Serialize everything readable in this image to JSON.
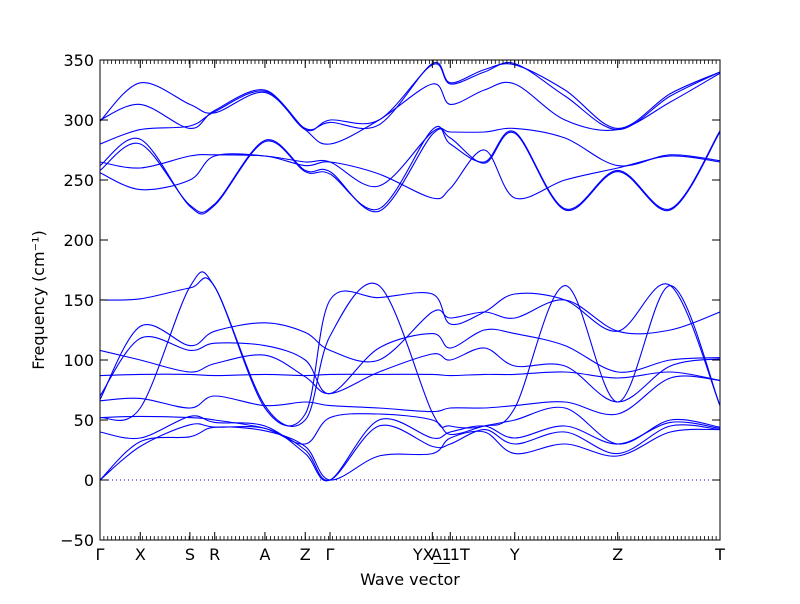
{
  "chart_data": {
    "type": "line",
    "title": "",
    "xlabel": "Wave vector",
    "ylabel": "Frequency (cm⁻¹)",
    "ylim": [
      -50,
      350
    ],
    "yticks": [
      -50,
      0,
      50,
      100,
      150,
      200,
      250,
      300,
      350
    ],
    "xlim": [
      0,
      1
    ],
    "grid": false,
    "line_color": "#0000ff",
    "zero_line": {
      "value": 0,
      "style": "dotted",
      "color": "#0000ff"
    },
    "kpoints": [
      {
        "label": "Γ",
        "x": 0.0
      },
      {
        "label": "X",
        "x": 0.065
      },
      {
        "label": "S",
        "x": 0.145
      },
      {
        "label": "R",
        "x": 0.185
      },
      {
        "label": "A",
        "x": 0.266
      },
      {
        "label": "Z",
        "x": 0.331
      },
      {
        "label": "Γ",
        "x": 0.371
      },
      {
        "label": "YX_1",
        "x": 0.536
      },
      {
        "label": "A_1T",
        "x": 0.565
      },
      {
        "label": "Y",
        "x": 0.669
      },
      {
        "label": "Z",
        "x": 0.835
      },
      {
        "label": "T",
        "x": 1.0
      }
    ],
    "series": [
      {
        "x": [
          0,
          0.065,
          0.145,
          0.185,
          0.266,
          0.331,
          0.371,
          0.45,
          0.536,
          0.565,
          0.62,
          0.669,
          0.75,
          0.835,
          0.92,
          1.0
        ],
        "y": [
          0,
          32,
          36,
          44,
          41,
          28,
          0,
          20,
          22,
          35,
          40,
          22,
          30,
          20,
          40,
          42
        ]
      },
      {
        "x": [
          0,
          0.065,
          0.145,
          0.185,
          0.266,
          0.331,
          0.371,
          0.45,
          0.536,
          0.565,
          0.62,
          0.669,
          0.75,
          0.835,
          0.92,
          1.0
        ],
        "y": [
          0,
          28,
          46,
          44,
          43,
          25,
          0,
          45,
          28,
          30,
          42,
          30,
          40,
          22,
          45,
          42
        ]
      },
      {
        "x": [
          0,
          0.065,
          0.145,
          0.185,
          0.266,
          0.331,
          0.371,
          0.45,
          0.536,
          0.565,
          0.62,
          0.669,
          0.75,
          0.835,
          0.92,
          1.0
        ],
        "y": [
          40,
          35,
          53,
          48,
          45,
          22,
          0,
          50,
          35,
          40,
          45,
          35,
          45,
          30,
          48,
          43
        ]
      },
      {
        "x": [
          0,
          0.065,
          0.145,
          0.185,
          0.266,
          0.331,
          0.371,
          0.45,
          0.536,
          0.565,
          0.62,
          0.669,
          0.75,
          0.835,
          0.92,
          1.0
        ],
        "y": [
          52,
          53,
          52,
          50,
          43,
          30,
          52,
          55,
          50,
          38,
          45,
          50,
          60,
          30,
          50,
          44
        ]
      },
      {
        "x": [
          0,
          0.065,
          0.145,
          0.185,
          0.266,
          0.331,
          0.371,
          0.45,
          0.536,
          0.565,
          0.62,
          0.669,
          0.75,
          0.835,
          0.92,
          1.0
        ],
        "y": [
          66,
          68,
          60,
          70,
          62,
          65,
          62,
          60,
          57,
          60,
          60,
          62,
          65,
          55,
          85,
          83
        ]
      },
      {
        "x": [
          0,
          0.065,
          0.145,
          0.185,
          0.266,
          0.331,
          0.371,
          0.45,
          0.536,
          0.565,
          0.62,
          0.669,
          0.75,
          0.835,
          0.92,
          1.0
        ],
        "y": [
          87,
          88,
          88,
          87,
          88,
          87,
          88,
          88,
          88,
          87,
          88,
          88,
          90,
          85,
          90,
          83
        ]
      },
      {
        "x": [
          0,
          0.065,
          0.145,
          0.185,
          0.266,
          0.331,
          0.371,
          0.45,
          0.536,
          0.565,
          0.62,
          0.669,
          0.75,
          0.835,
          0.92,
          1.0
        ],
        "y": [
          108,
          100,
          90,
          97,
          104,
          86,
          72,
          90,
          105,
          100,
          110,
          95,
          95,
          65,
          95,
          101
        ]
      },
      {
        "x": [
          0,
          0.065,
          0.145,
          0.185,
          0.266,
          0.331,
          0.371,
          0.45,
          0.536,
          0.565,
          0.62,
          0.669,
          0.75,
          0.835,
          0.92,
          1.0
        ],
        "y": [
          70,
          118,
          108,
          114,
          112,
          100,
          72,
          110,
          122,
          110,
          125,
          122,
          112,
          90,
          100,
          102
        ]
      },
      {
        "x": [
          0,
          0.065,
          0.145,
          0.185,
          0.266,
          0.331,
          0.371,
          0.45,
          0.536,
          0.565,
          0.62,
          0.669,
          0.75,
          0.835,
          0.92,
          1.0
        ],
        "y": [
          67,
          128,
          112,
          124,
          131,
          123,
          108,
          100,
          140,
          135,
          140,
          135,
          150,
          124,
          125,
          140
        ]
      },
      {
        "x": [
          0,
          0.065,
          0.145,
          0.185,
          0.266,
          0.331,
          0.371,
          0.45,
          0.536,
          0.565,
          0.62,
          0.669,
          0.75,
          0.835,
          0.92,
          1.0
        ],
        "y": [
          150,
          151,
          160,
          161,
          60,
          55,
          150,
          152,
          155,
          130,
          140,
          155,
          150,
          124,
          162,
          62
        ]
      },
      {
        "x": [
          0,
          0.065,
          0.145,
          0.185,
          0.266,
          0.331,
          0.371,
          0.45,
          0.536,
          0.565,
          0.62,
          0.669,
          0.75,
          0.835,
          0.92,
          1.0
        ],
        "y": [
          52,
          60,
          161,
          161,
          62,
          50,
          120,
          162,
          56,
          45,
          45,
          60,
          162,
          65,
          162,
          62
        ]
      },
      {
        "x": [
          0,
          0.065,
          0.145,
          0.185,
          0.266,
          0.331,
          0.371,
          0.45,
          0.536,
          0.565,
          0.62,
          0.669,
          0.75,
          0.835,
          0.92,
          1.0
        ],
        "y": [
          256,
          242,
          250,
          270,
          270,
          262,
          265,
          255,
          235,
          243,
          275,
          235,
          250,
          260,
          270,
          265
        ]
      },
      {
        "x": [
          0,
          0.065,
          0.145,
          0.185,
          0.266,
          0.331,
          0.371,
          0.45,
          0.536,
          0.565,
          0.62,
          0.669,
          0.75,
          0.835,
          0.92,
          1.0
        ],
        "y": [
          258,
          280,
          229,
          230,
          283,
          258,
          257,
          224,
          288,
          285,
          264,
          289,
          225,
          257,
          225,
          290
        ]
      },
      {
        "x": [
          0,
          0.065,
          0.145,
          0.185,
          0.266,
          0.331,
          0.371,
          0.45,
          0.536,
          0.565,
          0.62,
          0.669,
          0.75,
          0.835,
          0.92,
          1.0
        ],
        "y": [
          262,
          284,
          228,
          229,
          282,
          257,
          255,
          226,
          292,
          280,
          265,
          290,
          226,
          258,
          226,
          291
        ]
      },
      {
        "x": [
          0,
          0.065,
          0.145,
          0.185,
          0.266,
          0.331,
          0.371,
          0.45,
          0.536,
          0.565,
          0.62,
          0.669,
          0.75,
          0.835,
          0.92,
          1.0
        ],
        "y": [
          265,
          260,
          270,
          271,
          270,
          265,
          265,
          245,
          290,
          290,
          290,
          293,
          285,
          262,
          271,
          266
        ]
      },
      {
        "x": [
          0,
          0.065,
          0.145,
          0.185,
          0.266,
          0.331,
          0.371,
          0.45,
          0.536,
          0.565,
          0.62,
          0.669,
          0.75,
          0.835,
          0.92,
          1.0
        ],
        "y": [
          280,
          292,
          295,
          307,
          324,
          292,
          280,
          300,
          330,
          313,
          325,
          330,
          300,
          292,
          315,
          339
        ]
      },
      {
        "x": [
          0,
          0.065,
          0.145,
          0.185,
          0.266,
          0.331,
          0.371,
          0.45,
          0.536,
          0.565,
          0.62,
          0.669,
          0.75,
          0.835,
          0.92,
          1.0
        ],
        "y": [
          300,
          313,
          293,
          308,
          325,
          292,
          300,
          300,
          346,
          330,
          340,
          347,
          320,
          292,
          320,
          340
        ]
      },
      {
        "x": [
          0,
          0.065,
          0.145,
          0.185,
          0.266,
          0.331,
          0.371,
          0.45,
          0.536,
          0.565,
          0.62,
          0.669,
          0.75,
          0.835,
          0.92,
          1.0
        ],
        "y": [
          299,
          331,
          313,
          306,
          323,
          293,
          298,
          296,
          347,
          331,
          342,
          346,
          325,
          293,
          322,
          340
        ]
      }
    ]
  }
}
